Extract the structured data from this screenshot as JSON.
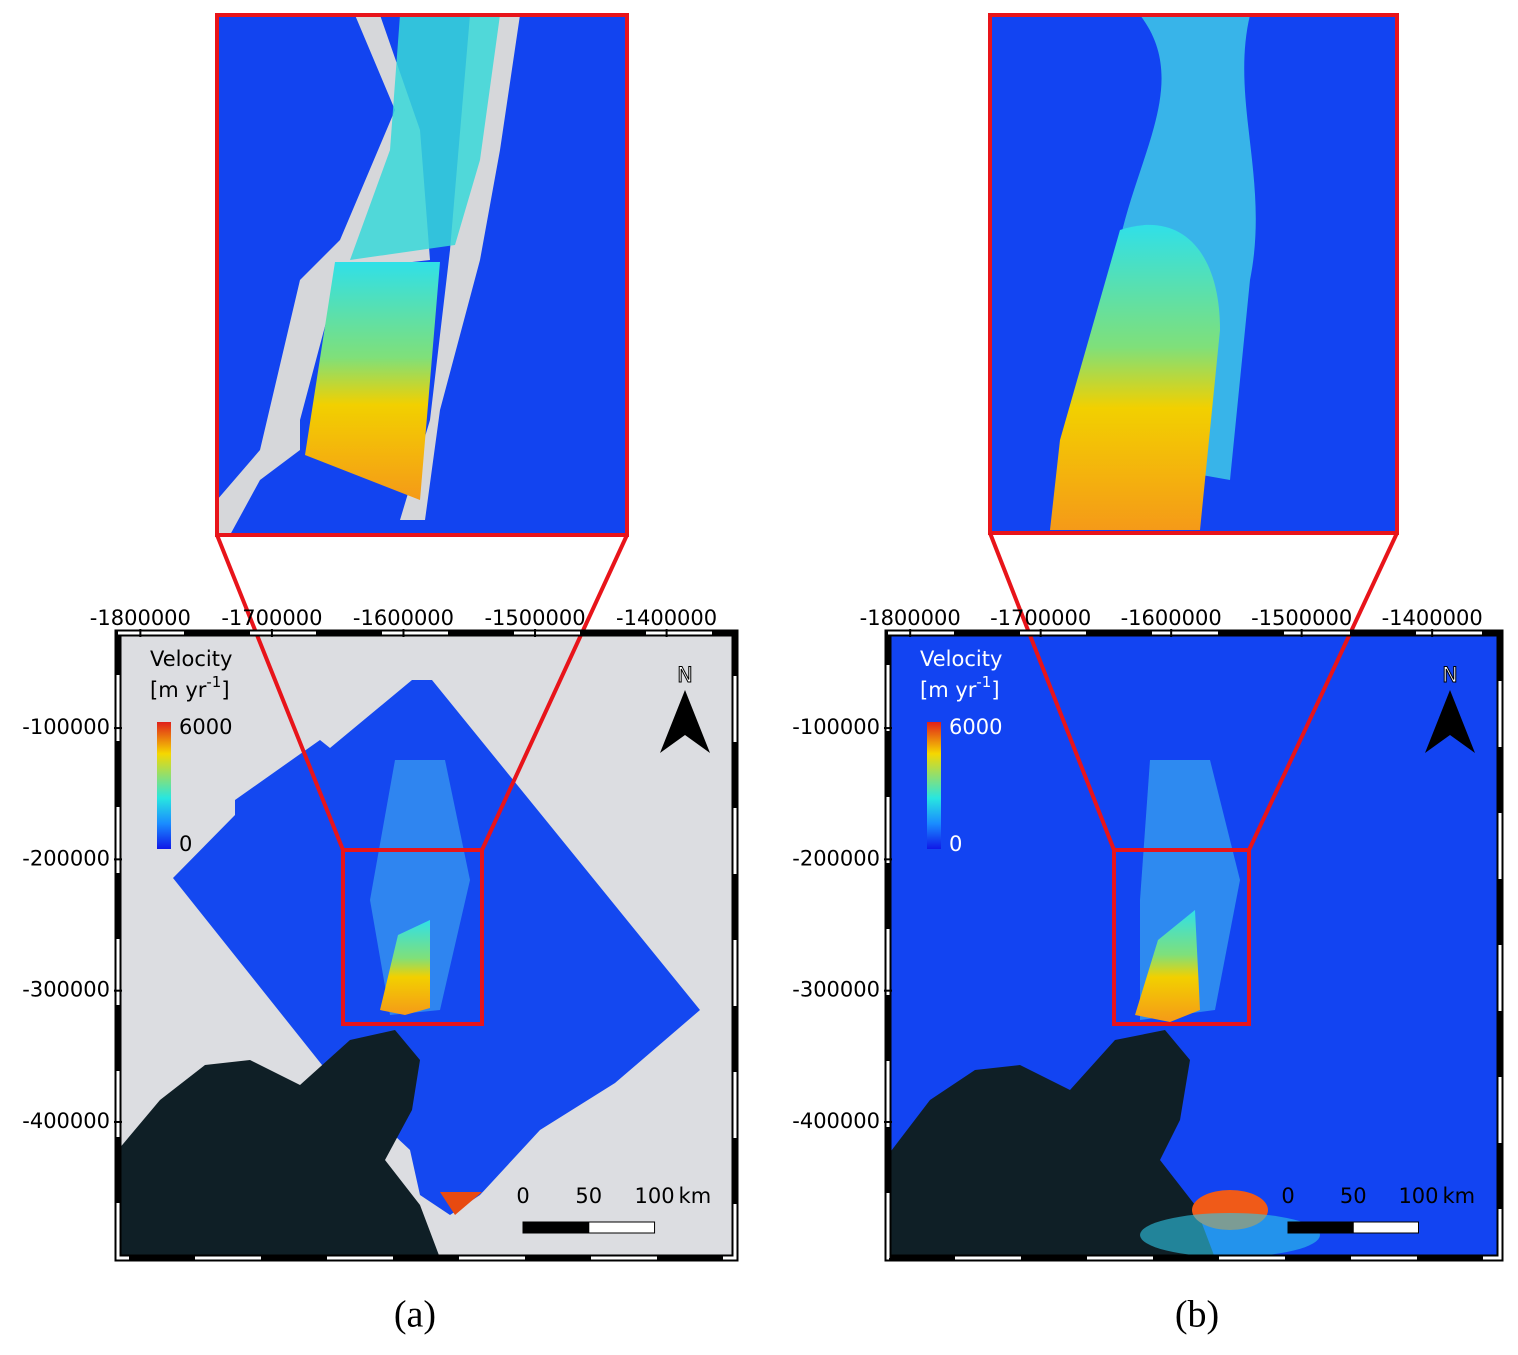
{
  "panels": [
    {
      "label": "(a)",
      "xlim": [
        -1817000,
        -1348000
      ],
      "ylim": [
        -503600,
        -27600
      ],
      "xticks": [
        -1800000,
        -1700000,
        -1600000,
        -1500000,
        -1400000
      ],
      "yticks": [
        -100000,
        -200000,
        -300000,
        -400000
      ],
      "legend": {
        "title": "Velocity",
        "unit": "[m yr",
        "unit_exponent": "-1",
        "unit_close": "]",
        "max": 6000,
        "min": 0
      },
      "north": "N",
      "scale": {
        "ticks": [
          0,
          50,
          100
        ],
        "unit": "km"
      }
    },
    {
      "label": "(b)",
      "xlim": [
        -1817000,
        -1348000
      ],
      "ylim": [
        -503600,
        -27600
      ],
      "xticks": [
        -1800000,
        -1700000,
        -1600000,
        -1500000,
        -1400000
      ],
      "yticks": [
        -100000,
        -200000,
        -300000,
        -400000
      ],
      "legend": {
        "title": "Velocity",
        "unit": "[m yr",
        "unit_exponent": "-1",
        "unit_close": "]",
        "max": 6000,
        "min": 0
      },
      "north": "N",
      "scale": {
        "ticks": [
          0,
          50,
          100
        ],
        "unit": "km"
      }
    }
  ]
}
